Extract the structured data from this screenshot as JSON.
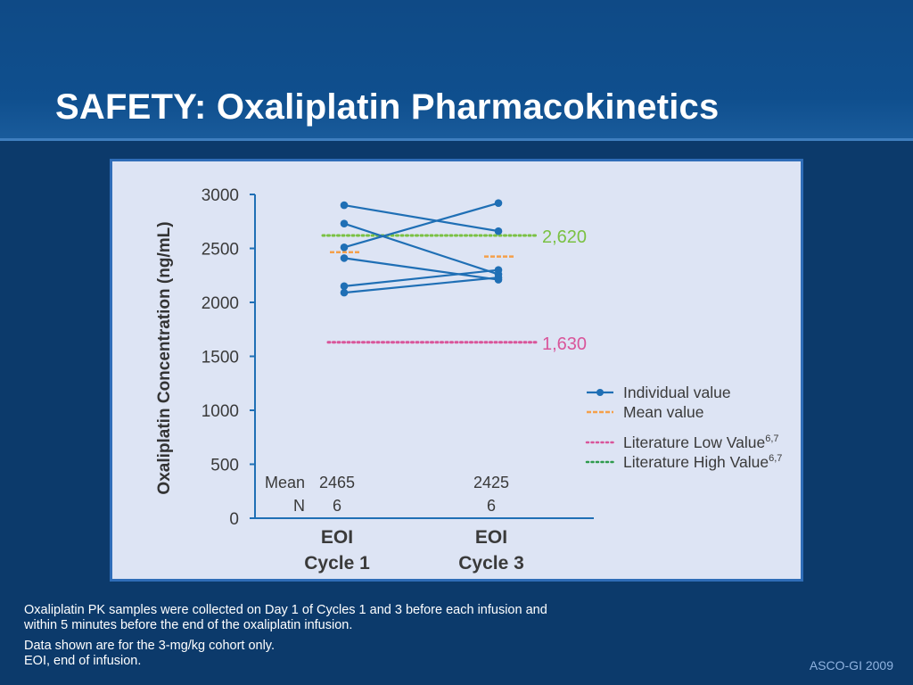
{
  "slide": {
    "title": "SAFETY: Oxaliplatin Pharmacokinetics",
    "caption_line1": "Oxaliplatin PK samples were collected on Day 1 of Cycles 1 and 3 before each infusion and within 5 minutes before the end of the oxaliplatin infusion.",
    "caption_line2": "Data shown are for the 3-mg/kg cohort only.",
    "caption_line3": "EOI, end of infusion.",
    "footer": "ASCO-GI 2009"
  },
  "chart_data": {
    "type": "line",
    "ylabel": "Oxaliplatin Concentration (ng/mL)",
    "ylim": [
      0,
      3000
    ],
    "yticks": [
      "0",
      "500",
      "1000",
      "1500",
      "2000",
      "2500",
      "3000"
    ],
    "categories": [
      {
        "line1": "EOI",
        "line2": "Cycle 1"
      },
      {
        "line1": "EOI",
        "line2": "Cycle 3"
      }
    ],
    "individual_series": [
      {
        "values": [
          2900,
          2660
        ]
      },
      {
        "values": [
          2730,
          2260
        ]
      },
      {
        "values": [
          2510,
          2920
        ]
      },
      {
        "values": [
          2410,
          2210
        ]
      },
      {
        "values": [
          2150,
          2300
        ]
      },
      {
        "values": [
          2090,
          2230
        ]
      }
    ],
    "mean_values": [
      2465,
      2425
    ],
    "reference_lines": [
      {
        "value": 2620,
        "label": "2,620",
        "color": "#7ac143"
      },
      {
        "value": 1630,
        "label": "1,630",
        "color": "#d9559a"
      }
    ],
    "table": {
      "mean_label": "Mean",
      "n_label": "N",
      "mean": [
        "2465",
        "2425"
      ],
      "n": [
        "6",
        "6"
      ]
    },
    "legend": {
      "position": "right",
      "items": [
        {
          "label": "Individual value",
          "sup": "",
          "style": "line-marker",
          "color": "#1f6fb5"
        },
        {
          "label": "Mean value",
          "sup": "",
          "style": "dash",
          "color": "#f5a04a"
        },
        {
          "label": "Literature Low Value",
          "sup": "6,7",
          "style": "dot",
          "color": "#d9559a"
        },
        {
          "label": "Literature High Value",
          "sup": "6,7",
          "style": "dot",
          "color": "#2e9b4c"
        }
      ]
    },
    "colors": {
      "individual": "#1f6fb5",
      "mean": "#f5a04a",
      "axis": "#1f6fb5",
      "text": "#3a3a3a",
      "ylabel": "#333333"
    }
  }
}
